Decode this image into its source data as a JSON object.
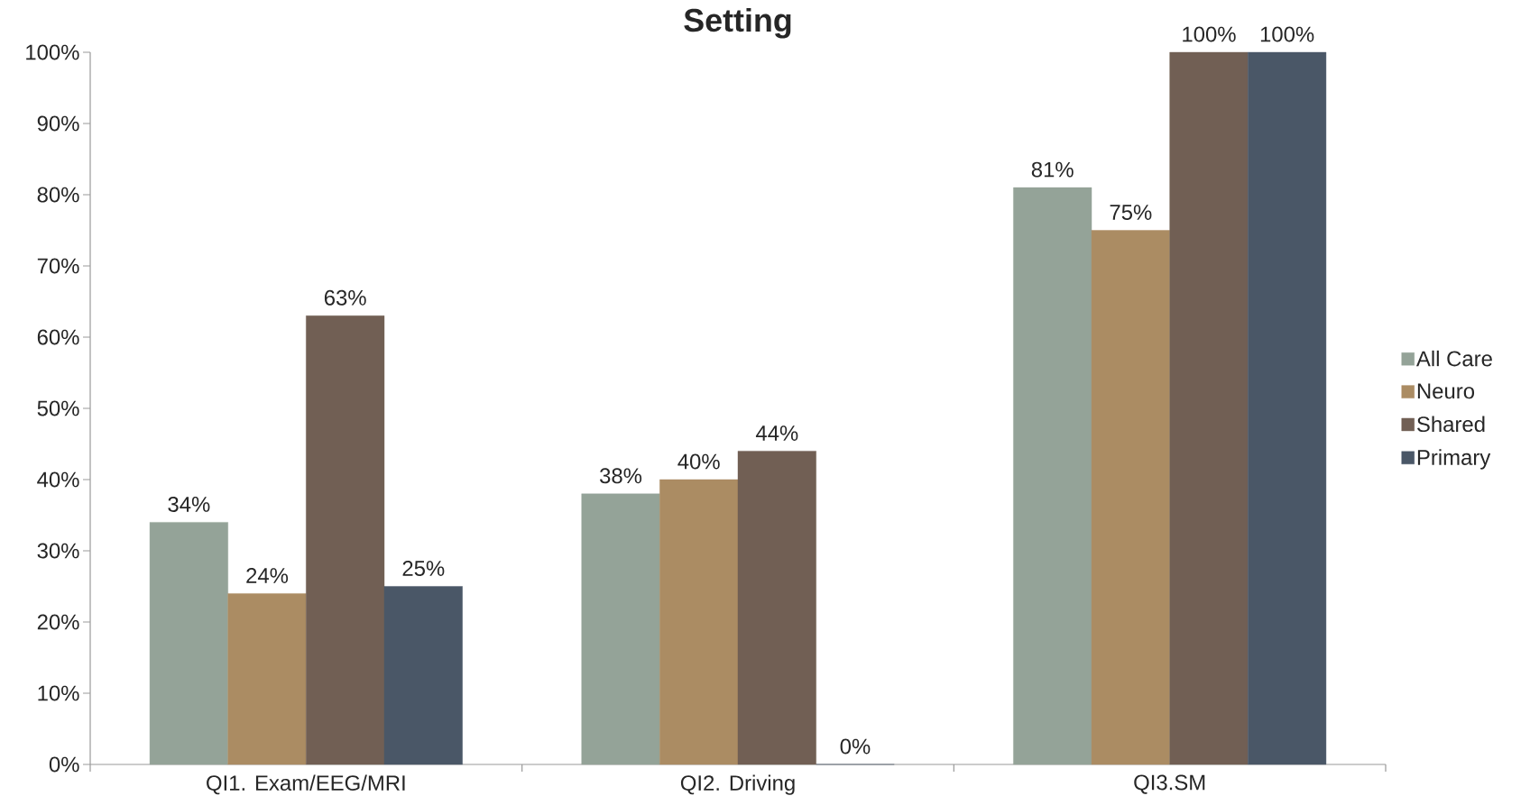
{
  "chart_data": {
    "type": "bar",
    "title": "Setting",
    "categories": [
      "QI1. Exam/EEG/MRI",
      "QI2. Driving",
      "QI3.SM"
    ],
    "series": [
      {
        "name": "All Care",
        "color": "#94a398",
        "values": [
          34,
          38,
          81
        ],
        "value_labels": [
          "34%",
          "38%",
          "81%"
        ]
      },
      {
        "name": "Neuro",
        "color": "#ab8c63",
        "values": [
          24,
          40,
          75
        ],
        "value_labels": [
          "24%",
          "40%",
          "75%"
        ]
      },
      {
        "name": "Shared",
        "color": "#715f54",
        "values": [
          63,
          44,
          100
        ],
        "value_labels": [
          "63%",
          "44%",
          "100%"
        ]
      },
      {
        "name": "Primary",
        "color": "#4a5767",
        "values": [
          25,
          0,
          100
        ],
        "value_labels": [
          "25%",
          "0%",
          "100%"
        ]
      }
    ],
    "ylim": [
      0,
      100
    ],
    "yticks": [
      {
        "value": 0,
        "label": "0%"
      },
      {
        "value": 10,
        "label": "10%"
      },
      {
        "value": 20,
        "label": "20%"
      },
      {
        "value": 30,
        "label": "30%"
      },
      {
        "value": 40,
        "label": "40%"
      },
      {
        "value": 50,
        "label": "50%"
      },
      {
        "value": 60,
        "label": "60%"
      },
      {
        "value": 70,
        "label": "70%"
      },
      {
        "value": 80,
        "label": "80%"
      },
      {
        "value": 90,
        "label": "90%"
      },
      {
        "value": 100,
        "label": "100%"
      }
    ],
    "grid": false,
    "legend": "right"
  }
}
